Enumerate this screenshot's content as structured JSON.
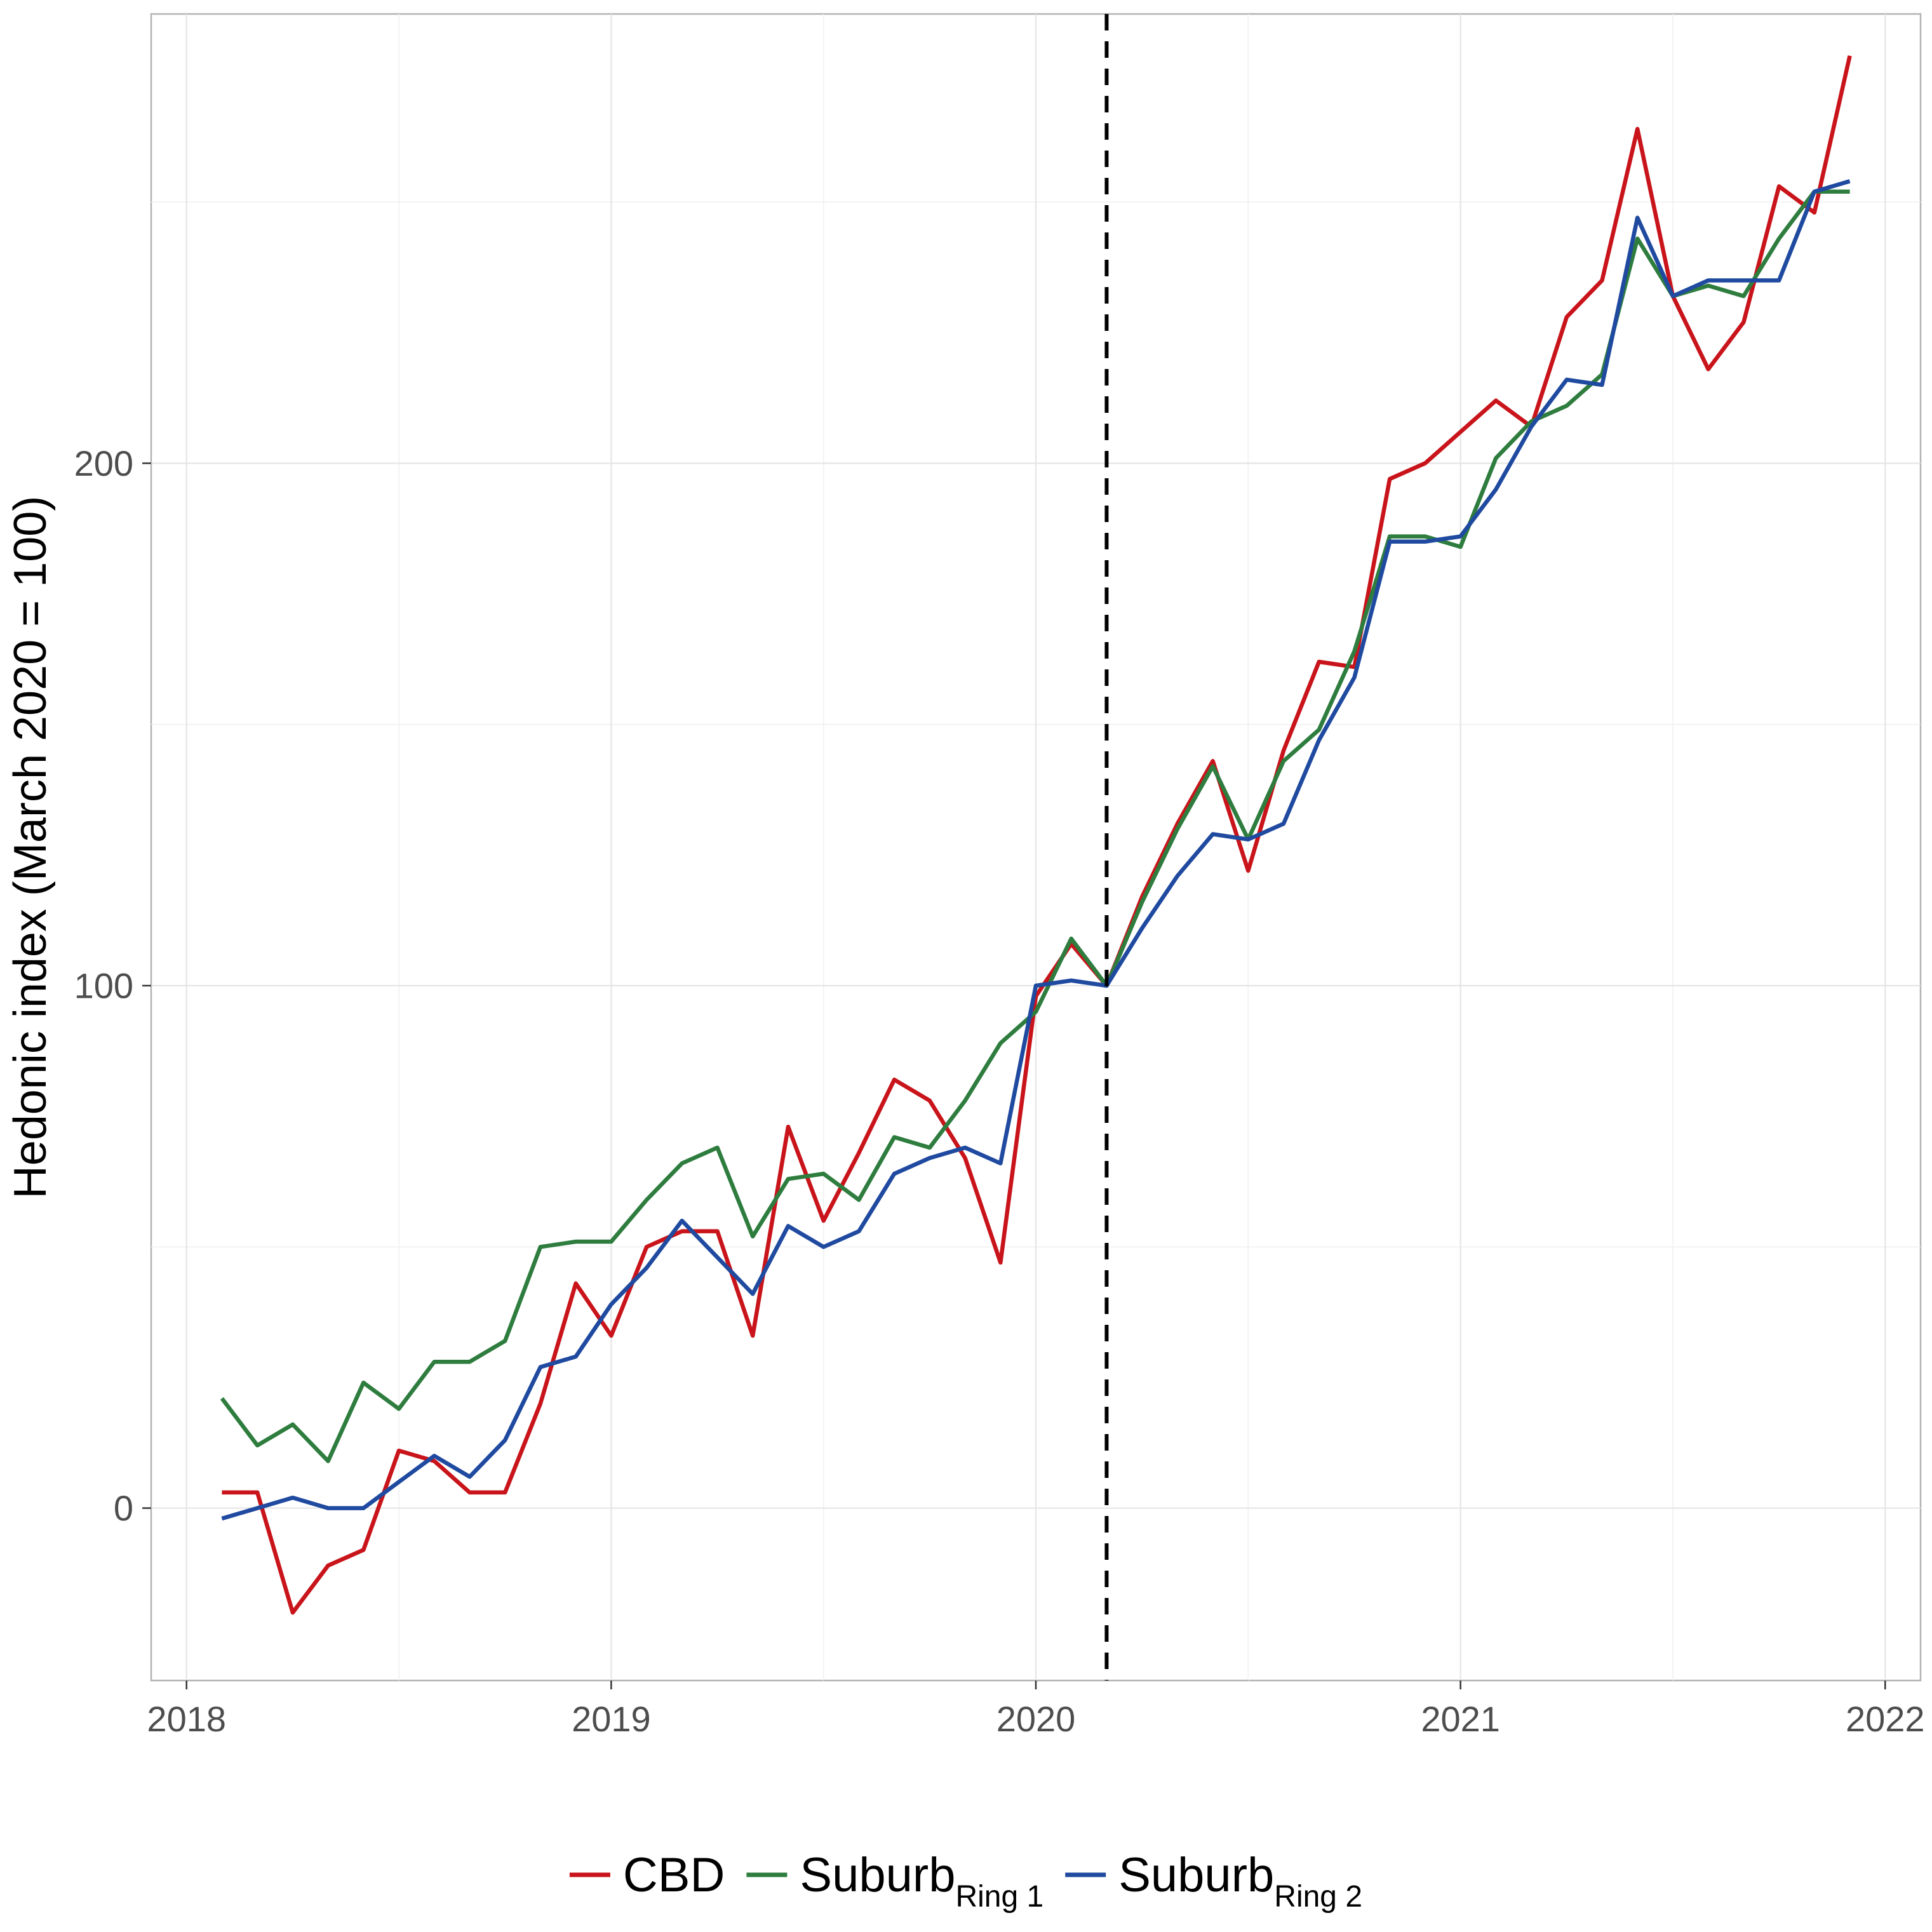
{
  "chart_data": {
    "type": "line",
    "title": "",
    "xlabel": "",
    "ylabel": "Hedonic index (March 2020 = 100)",
    "xlim": [
      "2017-12",
      "2022-02"
    ],
    "ylim": [
      -33,
      286
    ],
    "x_ticks": [
      "2018",
      "2019",
      "2020",
      "2021",
      "2022"
    ],
    "y_ticks": [
      0,
      100,
      200
    ],
    "grid": true,
    "legend_position": "bottom",
    "reference_line": {
      "x": "2020-03",
      "style": "dashed",
      "color": "#000000"
    },
    "x": [
      "2018-02",
      "2018-03",
      "2018-04",
      "2018-05",
      "2018-06",
      "2018-07",
      "2018-08",
      "2018-09",
      "2018-10",
      "2018-11",
      "2018-12",
      "2019-01",
      "2019-02",
      "2019-03",
      "2019-04",
      "2019-05",
      "2019-06",
      "2019-07",
      "2019-08",
      "2019-09",
      "2019-10",
      "2019-11",
      "2019-12",
      "2020-01",
      "2020-02",
      "2020-03",
      "2020-04",
      "2020-05",
      "2020-06",
      "2020-07",
      "2020-08",
      "2020-09",
      "2020-10",
      "2020-11",
      "2020-12",
      "2021-01",
      "2021-02",
      "2021-03",
      "2021-04",
      "2021-05",
      "2021-06",
      "2021-07",
      "2021-08",
      "2021-09",
      "2021-10",
      "2021-11",
      "2021-12"
    ],
    "series": [
      {
        "name": "CBD",
        "subscript": "",
        "color": "#c8141a",
        "values": [
          3,
          3,
          -20,
          -11,
          -8,
          11,
          9,
          3,
          3,
          20,
          43,
          33,
          50,
          53,
          53,
          33,
          73,
          55,
          68,
          82,
          78,
          67,
          47,
          98,
          108,
          100,
          117,
          131,
          143,
          122,
          145,
          162,
          161,
          197,
          200,
          206,
          212,
          207,
          228,
          235,
          264,
          232,
          218,
          227,
          253,
          248,
          278
        ]
      },
      {
        "name": "Suburb",
        "subscript": "Ring 1",
        "color": "#2e7d3f",
        "values": [
          21,
          12,
          16,
          9,
          24,
          19,
          28,
          28,
          32,
          50,
          51,
          51,
          59,
          66,
          69,
          52,
          63,
          64,
          59,
          71,
          69,
          78,
          89,
          95,
          109,
          100,
          116,
          130,
          142,
          128,
          143,
          149,
          164,
          186,
          186,
          184,
          201,
          208,
          211,
          217,
          243,
          232,
          234,
          232,
          243,
          252,
          252
        ]
      },
      {
        "name": "Suburb",
        "subscript": "Ring 2",
        "color": "#1f4aa0",
        "values": [
          -2,
          0,
          2,
          0,
          0,
          5,
          10,
          6,
          13,
          27,
          29,
          39,
          46,
          55,
          48,
          41,
          54,
          50,
          53,
          64,
          67,
          69,
          66,
          100,
          101,
          100,
          111,
          121,
          129,
          128,
          131,
          147,
          159,
          185,
          185,
          186,
          195,
          207,
          216,
          215,
          247,
          232,
          235,
          235,
          235,
          252,
          254
        ]
      }
    ]
  }
}
